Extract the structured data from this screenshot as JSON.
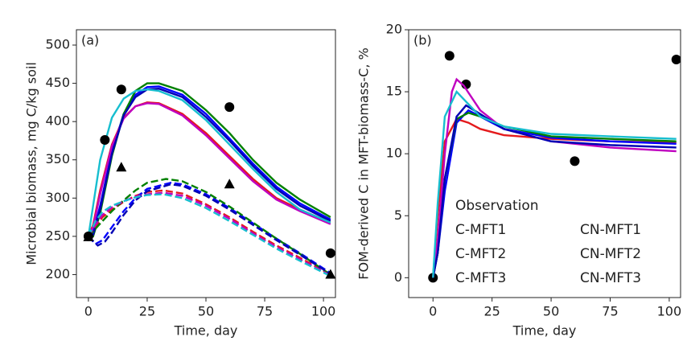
{
  "chart_data": [
    {
      "type": "line",
      "label": "(a)",
      "xlabel": "Time, day",
      "ylabel": "Microbial biomass, mg C/kg soil",
      "xlim": [
        -5.1,
        105.1
      ],
      "ylim": [
        170,
        520
      ],
      "xticks": [
        0,
        25,
        50,
        75,
        100
      ],
      "yticks": [
        200,
        250,
        300,
        350,
        400,
        450,
        500
      ],
      "series": [
        {
          "color": "#e41a1c",
          "linestyle": "solid",
          "x": [
            0,
            2,
            5,
            10,
            15,
            20,
            25,
            30,
            40,
            50,
            60,
            70,
            80,
            90,
            103
          ],
          "values": [
            250,
            265,
            310,
            370,
            405,
            420,
            425,
            424,
            410,
            385,
            355,
            325,
            300,
            285,
            268
          ]
        },
        {
          "color": "#0000ff",
          "linestyle": "solid",
          "x": [
            0,
            2,
            5,
            10,
            15,
            20,
            25,
            30,
            40,
            50,
            60,
            70,
            80,
            90,
            103
          ],
          "values": [
            250,
            255,
            290,
            360,
            410,
            435,
            445,
            446,
            435,
            410,
            378,
            345,
            315,
            293,
            272
          ]
        },
        {
          "color": "#008000",
          "linestyle": "solid",
          "x": [
            0,
            2,
            5,
            10,
            15,
            20,
            25,
            30,
            40,
            50,
            60,
            70,
            80,
            90,
            103
          ],
          "values": [
            250,
            250,
            280,
            355,
            410,
            440,
            450,
            450,
            440,
            415,
            385,
            350,
            320,
            298,
            275
          ]
        },
        {
          "color": "#bf00bf",
          "linestyle": "solid",
          "x": [
            0,
            2,
            5,
            10,
            15,
            20,
            25,
            30,
            40,
            50,
            60,
            70,
            80,
            90,
            103
          ],
          "values": [
            250,
            262,
            305,
            368,
            404,
            420,
            424,
            423,
            408,
            382,
            352,
            322,
            298,
            283,
            266
          ]
        },
        {
          "color": "#0000b4",
          "linestyle": "solid",
          "x": [
            0,
            2,
            5,
            10,
            15,
            20,
            25,
            30,
            40,
            50,
            60,
            70,
            80,
            90,
            103
          ],
          "values": [
            250,
            252,
            285,
            358,
            408,
            432,
            442,
            443,
            432,
            406,
            375,
            342,
            312,
            290,
            270
          ]
        },
        {
          "color": "#17becf",
          "linestyle": "solid",
          "x": [
            0,
            2,
            5,
            10,
            15,
            20,
            25,
            30,
            40,
            50,
            60,
            70,
            80,
            90,
            103
          ],
          "values": [
            250,
            290,
            350,
            405,
            430,
            440,
            442,
            440,
            428,
            402,
            370,
            338,
            308,
            285,
            268
          ]
        },
        {
          "color": "#e41a1c",
          "linestyle": "dashed",
          "x": [
            0,
            3,
            6,
            10,
            15,
            20,
            25,
            32,
            40,
            50,
            60,
            70,
            80,
            90,
            103
          ],
          "values": [
            250,
            262,
            275,
            285,
            295,
            303,
            308,
            310,
            306,
            292,
            275,
            256,
            238,
            222,
            200
          ]
        },
        {
          "color": "#0000ff",
          "linestyle": "dashed",
          "x": [
            0,
            3,
            6,
            10,
            15,
            20,
            25,
            35,
            40,
            50,
            60,
            70,
            80,
            90,
            103
          ],
          "values": [
            250,
            240,
            245,
            262,
            283,
            300,
            312,
            320,
            318,
            305,
            287,
            267,
            247,
            228,
            202
          ]
        },
        {
          "color": "#008000",
          "linestyle": "dashed",
          "x": [
            0,
            3,
            6,
            10,
            15,
            20,
            25,
            33,
            40,
            50,
            60,
            70,
            80,
            90,
            103
          ],
          "values": [
            250,
            260,
            270,
            283,
            297,
            310,
            320,
            325,
            322,
            308,
            289,
            268,
            247,
            227,
            200
          ]
        },
        {
          "color": "#bf00bf",
          "linestyle": "dashed",
          "x": [
            0,
            3,
            6,
            10,
            15,
            20,
            25,
            32,
            40,
            50,
            60,
            70,
            80,
            90,
            103
          ],
          "values": [
            250,
            265,
            278,
            288,
            296,
            302,
            305,
            307,
            303,
            290,
            273,
            254,
            236,
            220,
            199
          ]
        },
        {
          "color": "#0000b4",
          "linestyle": "dashed",
          "x": [
            0,
            4,
            7,
            10,
            15,
            20,
            25,
            35,
            40,
            50,
            60,
            70,
            80,
            90,
            103
          ],
          "values": [
            250,
            238,
            243,
            255,
            278,
            297,
            309,
            318,
            316,
            303,
            285,
            265,
            245,
            226,
            201
          ]
        },
        {
          "color": "#17becf",
          "linestyle": "dashed",
          "x": [
            0,
            3,
            6,
            10,
            15,
            20,
            25,
            32,
            40,
            50,
            60,
            70,
            80,
            90,
            103
          ],
          "values": [
            250,
            270,
            282,
            290,
            296,
            301,
            304,
            305,
            300,
            287,
            270,
            252,
            234,
            218,
            198
          ]
        },
        {
          "color": "#000000",
          "marker": "circle",
          "x": [
            0,
            7,
            14,
            60,
            103
          ],
          "values": [
            250,
            376,
            442,
            419,
            228
          ]
        },
        {
          "color": "#000000",
          "marker": "triangle",
          "x": [
            0,
            14,
            60,
            103
          ],
          "values": [
            249,
            340,
            318,
            200
          ]
        }
      ]
    },
    {
      "type": "line",
      "label": "(b)",
      "xlabel": "Time, day",
      "ylabel": "FOM-derived C in MFT-biomass-C, %",
      "xlim": [
        -10.3,
        104.8
      ],
      "ylim": [
        -1.6,
        20
      ],
      "xticks": [
        0,
        25,
        50,
        75,
        100
      ],
      "yticks": [
        0,
        5,
        10,
        15,
        20
      ],
      "legend": "lower right",
      "series": [
        {
          "name": "Observation",
          "color": "#000000",
          "marker": "circle",
          "x": [
            0,
            7,
            14,
            60,
            103
          ],
          "values": [
            0,
            17.9,
            15.6,
            9.4,
            17.6
          ]
        },
        {
          "name": "C-MFT1",
          "color": "#e41a1c",
          "linestyle": "solid",
          "x": [
            0,
            2,
            5,
            10,
            15,
            20,
            30,
            50,
            75,
            103
          ],
          "values": [
            0,
            5,
            11,
            12.8,
            12.5,
            12,
            11.5,
            11.2,
            11,
            10.9
          ]
        },
        {
          "name": "C-MFT2",
          "color": "#0000ff",
          "linestyle": "solid",
          "x": [
            0,
            2,
            5,
            10,
            15,
            20,
            30,
            50,
            75,
            103
          ],
          "values": [
            0,
            2,
            7,
            12.5,
            13.5,
            13,
            12,
            11.3,
            11,
            10.8
          ]
        },
        {
          "name": "C-MFT3",
          "color": "#008000",
          "linestyle": "solid",
          "x": [
            0,
            2,
            5,
            10,
            15,
            20,
            30,
            50,
            75,
            103
          ],
          "values": [
            0,
            2,
            8,
            12.8,
            13.3,
            13,
            12.2,
            11.4,
            11.2,
            11
          ]
        },
        {
          "name": "CN-MFT1",
          "color": "#bf00bf",
          "linestyle": "solid",
          "x": [
            0,
            2,
            5,
            8,
            10,
            13,
            20,
            30,
            50,
            75,
            103
          ],
          "values": [
            0,
            3,
            10,
            15,
            16,
            15.5,
            13.5,
            12,
            11,
            10.5,
            10.2
          ]
        },
        {
          "name": "CN-MFT2",
          "color": "#0000b4",
          "linestyle": "solid",
          "x": [
            0,
            2,
            5,
            10,
            14,
            20,
            30,
            50,
            75,
            103
          ],
          "values": [
            0,
            2,
            8,
            13,
            13.9,
            13.2,
            12,
            11,
            10.7,
            10.5
          ]
        },
        {
          "name": "CN-MFT3",
          "color": "#17becf",
          "linestyle": "solid",
          "x": [
            0,
            2,
            5,
            10,
            15,
            20,
            30,
            50,
            75,
            103
          ],
          "values": [
            0,
            6,
            13,
            15,
            14,
            13,
            12.2,
            11.6,
            11.4,
            11.2
          ]
        }
      ]
    }
  ]
}
